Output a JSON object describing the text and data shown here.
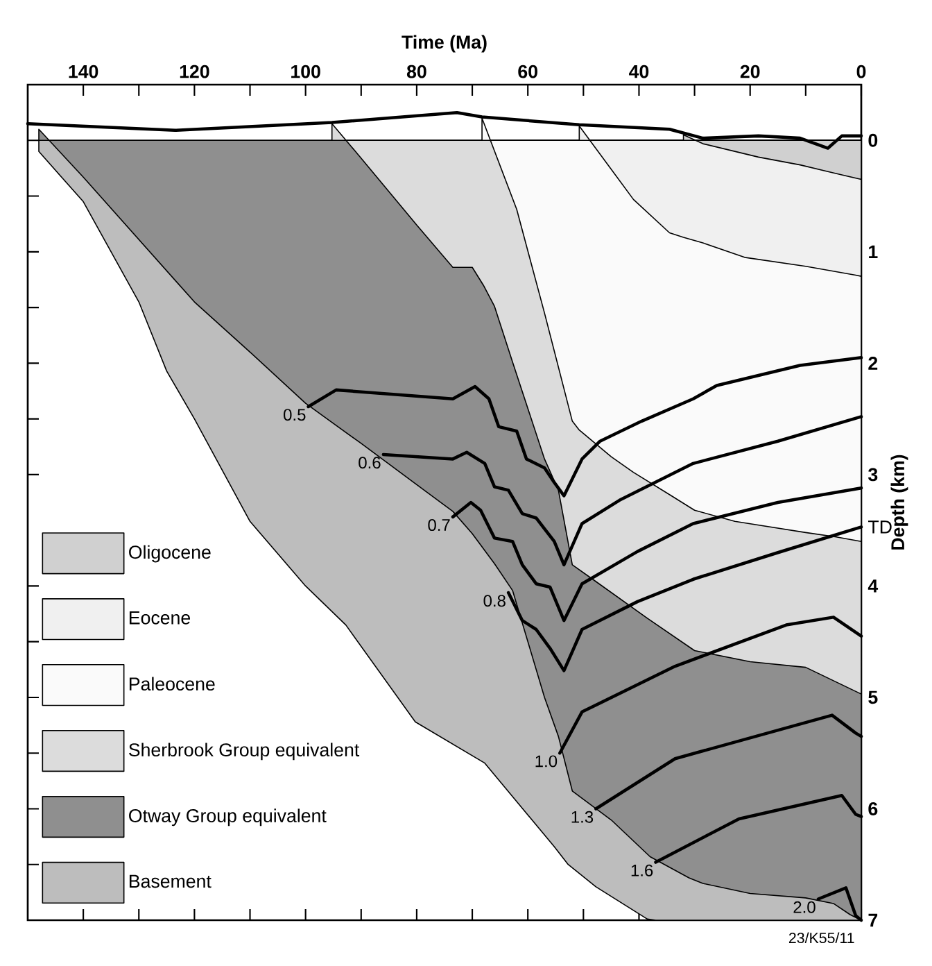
{
  "chart_data": {
    "type": "area",
    "xlabel": "Time (Ma)",
    "ylabel": "Depth (km)",
    "xlim": [
      150,
      0
    ],
    "ylim": [
      7,
      -0.5
    ],
    "xticks": [
      140,
      {
        "value": 130,
        "label": null
      },
      120,
      {
        "value": 110,
        "label": null
      },
      100,
      {
        "value": 90,
        "label": null
      },
      80,
      {
        "value": 70,
        "label": null
      },
      60,
      {
        "value": 50,
        "label": null
      },
      40,
      {
        "value": 30,
        "label": null
      },
      20,
      {
        "value": 10,
        "label": null
      },
      0
    ],
    "yticks": [
      0,
      {
        "value": 0.5,
        "label": null
      },
      1,
      {
        "value": 1.5,
        "label": null
      },
      2,
      {
        "value": 2.5,
        "label": null
      },
      3,
      4,
      {
        "value": 4.5,
        "label": null
      },
      5,
      {
        "value": 5.5,
        "label": null
      },
      6,
      {
        "value": 6.5,
        "label": null
      },
      7
    ],
    "legend": "bottom left",
    "annotations": [
      {
        "text": "TD",
        "x": 0,
        "y": 3.47
      },
      "23/K55/11"
    ],
    "series": [
      {
        "name": "Oligocene",
        "color": "#d0d0d0",
        "x": [
          32,
          28.5,
          18.5,
          11,
          6,
          3.5,
          0
        ],
        "values": [
          -0.05,
          0.03,
          0.15,
          0.22,
          0.28,
          0.31,
          0.35
        ]
      },
      {
        "name": "Eocene",
        "color": "#f0f0f0",
        "x": [
          50.75,
          41,
          34.5,
          32,
          28.5,
          21,
          10,
          1,
          0
        ],
        "values": [
          -0.13,
          0.53,
          0.83,
          0.87,
          0.92,
          1.05,
          1.13,
          1.21,
          1.22
        ]
      },
      {
        "name": "Paleocene",
        "color": "#fafafa",
        "x": [
          68.25,
          62,
          57,
          52,
          50.75,
          45,
          41,
          34.5,
          30,
          22.75,
          10,
          4.5,
          0
        ],
        "values": [
          -0.2,
          0.62,
          1.55,
          2.52,
          2.6,
          2.84,
          2.98,
          3.18,
          3.32,
          3.42,
          3.52,
          3.56,
          3.6
        ]
      },
      {
        "name": "Sherbrook Group equivalent",
        "color": "#dcdcdc",
        "x": [
          95.25,
          90,
          80,
          73.5,
          70,
          68,
          66,
          62.75,
          57,
          54.5,
          52,
          47.75,
          38.5,
          30,
          20,
          10,
          0
        ],
        "values": [
          -0.15,
          0.16,
          0.76,
          1.14,
          1.14,
          1.3,
          1.49,
          1.99,
          2.86,
          3.14,
          3.81,
          3.96,
          4.29,
          4.58,
          4.68,
          4.73,
          4.97
        ]
      },
      {
        "name": "Otway Group equivalent",
        "color": "#8f8f8f",
        "x": [
          148,
          140,
          130,
          120,
          110,
          100,
          95,
          90,
          80,
          73.5,
          70,
          66,
          62.75,
          57,
          54.5,
          52,
          45,
          38,
          31,
          28.5,
          20,
          10,
          5,
          2,
          0
        ],
        "values": [
          -0.1,
          0.33,
          0.89,
          1.45,
          1.9,
          2.36,
          2.54,
          2.72,
          3.09,
          3.33,
          3.53,
          3.8,
          4.04,
          5.0,
          5.35,
          5.84,
          6.1,
          6.43,
          6.62,
          6.67,
          6.76,
          6.8,
          6.85,
          6.95,
          7.0
        ]
      },
      {
        "name": "Basement",
        "color": "#bdbdbd",
        "x": [
          148,
          140,
          130,
          125,
          120,
          110,
          100,
          92.75,
          80.25,
          67.75,
          55.25,
          52.75,
          47.75,
          38.5,
          37,
          22,
          8,
          0
        ],
        "values": [
          0.1,
          0.55,
          1.45,
          2.07,
          2.5,
          3.42,
          4.0,
          4.35,
          5.22,
          5.59,
          6.34,
          6.5,
          6.7,
          6.99,
          7.0,
          7.0,
          7.0,
          7.0
        ]
      },
      {
        "type": "line",
        "color": "#000000",
        "x": [
          150,
          123.5,
          95.25,
          72.75,
          68.25,
          50.75,
          34.5,
          28.5,
          18.5,
          11,
          6,
          3.5,
          0
        ],
        "values": [
          -0.15,
          -0.09,
          -0.16,
          -0.25,
          -0.21,
          -0.14,
          -0.1,
          -0.02,
          -0.04,
          -0.02,
          0.07,
          -0.04,
          -0.04
        ]
      },
      {
        "name": "0.5",
        "type": "line",
        "color": "#000000",
        "x": [
          99.5,
          94.5,
          73.5,
          69.5,
          67,
          65.25,
          62,
          60.25,
          57,
          55.25,
          53.5,
          50.25,
          47,
          39.5,
          30.25,
          26,
          11,
          0
        ],
        "values": [
          2.39,
          2.24,
          2.32,
          2.21,
          2.32,
          2.57,
          2.61,
          2.86,
          2.94,
          3.07,
          3.19,
          2.86,
          2.7,
          2.52,
          2.32,
          2.2,
          2.02,
          1.95
        ]
      },
      {
        "name": "0.6",
        "type": "line",
        "color": "#000000",
        "x": [
          86,
          73.5,
          71,
          67.75,
          66,
          63.5,
          61,
          58.5,
          55.25,
          53.5,
          50.25,
          43.5,
          30.25,
          15,
          0
        ],
        "values": [
          2.82,
          2.86,
          2.8,
          2.9,
          3.11,
          3.14,
          3.35,
          3.39,
          3.6,
          3.81,
          3.44,
          3.23,
          2.9,
          2.7,
          2.48
        ]
      },
      {
        "name": "0.7",
        "type": "line",
        "color": "#000000",
        "x": [
          73.5,
          70.25,
          68.5,
          66,
          62.75,
          61,
          58.5,
          56,
          54.5,
          53.5,
          50.25,
          40.25,
          30.25,
          15,
          0
        ],
        "values": [
          3.38,
          3.25,
          3.32,
          3.57,
          3.6,
          3.81,
          3.98,
          4.01,
          4.19,
          4.31,
          3.98,
          3.69,
          3.44,
          3.25,
          3.12
        ]
      },
      {
        "name": "0.8",
        "type": "line",
        "color": "#000000",
        "x": [
          63.5,
          61,
          58.5,
          56,
          53.5,
          50.25,
          40.25,
          30.25,
          15,
          0
        ],
        "values": [
          4.06,
          4.31,
          4.39,
          4.56,
          4.76,
          4.39,
          4.14,
          3.94,
          3.7,
          3.47
        ]
      },
      {
        "name": "1.0",
        "type": "line",
        "color": "#000000",
        "x": [
          54.25,
          50.25,
          33.5,
          13.5,
          5,
          0
        ],
        "values": [
          5.5,
          5.13,
          4.72,
          4.35,
          4.28,
          4.45
        ]
      },
      {
        "name": "1.3",
        "type": "line",
        "color": "#000000",
        "x": [
          47.75,
          33.5,
          5.25,
          1,
          0
        ],
        "values": [
          6.0,
          5.55,
          5.16,
          5.32,
          5.35
        ]
      },
      {
        "name": "1.6",
        "type": "line",
        "color": "#000000",
        "x": [
          37,
          22,
          3.5,
          1,
          0
        ],
        "values": [
          6.48,
          6.09,
          5.88,
          6.05,
          6.07
        ]
      },
      {
        "name": "2.0",
        "type": "line",
        "color": "#000000",
        "x": [
          7.75,
          2.75,
          1,
          0
        ],
        "values": [
          6.81,
          6.71,
          6.96,
          7.0
        ]
      }
    ]
  }
}
